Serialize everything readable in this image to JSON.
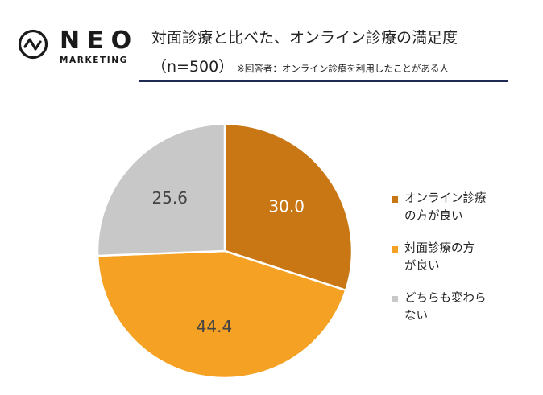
{
  "brand": {
    "name": "NEO",
    "sub": "MARKETING"
  },
  "header": {
    "title": "対面診療と比べた、オンライン診療の満足度",
    "n_label": "（n=500）",
    "note": "※回答者：オンライン診療を利用したことがある人"
  },
  "colors": {
    "accent_rule": "#1f2a55",
    "slice_1": "#c97714",
    "slice_2": "#f5a124",
    "slice_3": "#c8c8c8"
  },
  "chart_data": {
    "type": "pie",
    "title": "対面診療と比べた、オンライン診療の満足度",
    "categories": [
      "オンライン診療の方が良い",
      "対面診療の方が良い",
      "どちらも変わらない"
    ],
    "values": [
      30.0,
      44.4,
      25.6
    ],
    "value_labels": [
      "30.0",
      "44.4",
      "25.6"
    ],
    "colors": [
      "#c97714",
      "#f5a124",
      "#c8c8c8"
    ],
    "legend_position": "right",
    "legend_lines": [
      [
        "オンライン診療",
        "の方が良い"
      ],
      [
        "対面診療の方",
        "が良い"
      ],
      [
        "どちらも変わら",
        "ない"
      ]
    ]
  }
}
